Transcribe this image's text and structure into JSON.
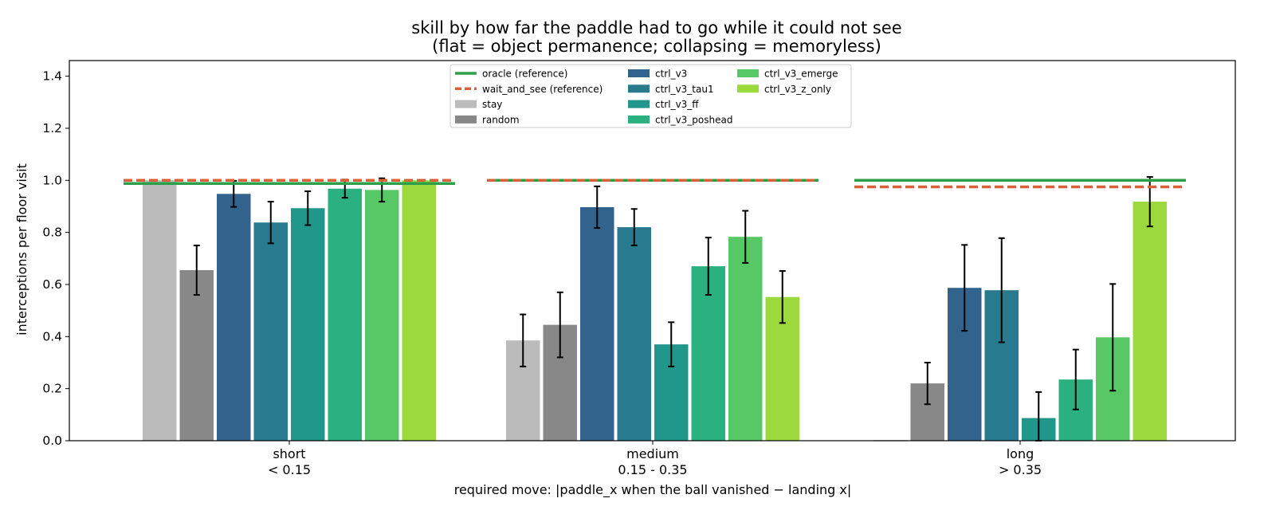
{
  "chart_data": {
    "type": "bar",
    "title": "skill by how far the paddle had to go while it could not see",
    "subtitle": "(flat = object permanence; collapsing = memoryless)",
    "xlabel": "required move: |paddle_x when the ball vanished − landing x|",
    "ylabel": "interceptions per floor visit",
    "ylim": [
      0,
      1.46
    ],
    "yticks": [
      "0.0",
      "0.2",
      "0.4",
      "0.6",
      "0.8",
      "1.0",
      "1.2",
      "1.4"
    ],
    "categories": [
      {
        "name": "short",
        "range": "< 0.15"
      },
      {
        "name": "medium",
        "range": "0.15 - 0.35"
      },
      {
        "name": "long",
        "range": "> 0.35"
      }
    ],
    "series": [
      {
        "name": "stay",
        "color": "#bbbbbb",
        "values": [
          1.0,
          0.385,
          0.0
        ],
        "err": [
          null,
          0.1,
          null
        ]
      },
      {
        "name": "random",
        "color": "#888888",
        "values": [
          0.655,
          0.445,
          0.22
        ],
        "err": [
          0.095,
          0.125,
          0.08
        ]
      },
      {
        "name": "ctrl_v3",
        "color": "#32638c",
        "values": [
          0.948,
          0.897,
          0.587
        ],
        "err": [
          0.05,
          0.08,
          0.165
        ]
      },
      {
        "name": "ctrl_v3_tau1",
        "color": "#287a8e",
        "values": [
          0.838,
          0.82,
          0.578
        ],
        "err": [
          0.08,
          0.07,
          0.2
        ]
      },
      {
        "name": "ctrl_v3_ff",
        "color": "#21968b",
        "values": [
          0.893,
          0.37,
          0.087
        ],
        "err": [
          0.065,
          0.085,
          0.1
        ]
      },
      {
        "name": "ctrl_v3_poshead",
        "color": "#2bb07f",
        "values": [
          0.968,
          0.67,
          0.235
        ],
        "err": [
          0.035,
          0.11,
          0.115
        ]
      },
      {
        "name": "ctrl_v3_emerge",
        "color": "#58c765",
        "values": [
          0.963,
          0.783,
          0.397
        ],
        "err": [
          0.045,
          0.1,
          0.205
        ]
      },
      {
        "name": "ctrl_v3_z_only",
        "color": "#9bd93c",
        "values": [
          1.0,
          0.552,
          0.918
        ],
        "err": [
          null,
          0.1,
          0.095
        ]
      }
    ],
    "reference_lines": [
      {
        "name": "oracle (reference)",
        "color": "#2e9e48",
        "style": "solid",
        "values": [
          0.988,
          1.0,
          1.0
        ]
      },
      {
        "name": "wait_and_see (reference)",
        "color": "#d9623b",
        "style": "dashed",
        "values": [
          1.0,
          1.0,
          0.975
        ]
      }
    ],
    "legend_position": "top-center",
    "grid": false
  }
}
